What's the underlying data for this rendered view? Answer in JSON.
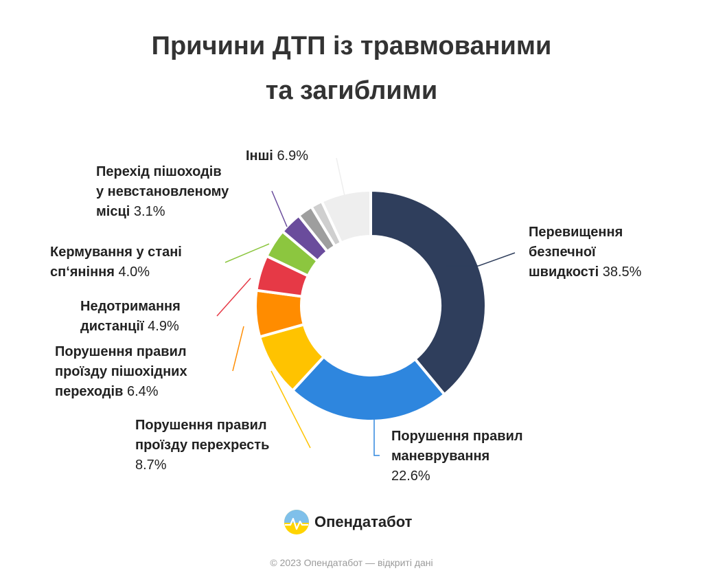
{
  "title_line1": "Причини ДТП із травмованими",
  "title_line2": "та загиблими",
  "chart_data": {
    "type": "pie",
    "donut": true,
    "title": "Причини ДТП із травмованими та загиблими",
    "unit": "%",
    "slices": [
      {
        "label": "Перевищення безпечної швидкості",
        "value": 38.5,
        "value_text": "38.5%",
        "color": "#2f3e5c"
      },
      {
        "label": "Порушення правил маневрування",
        "value": 22.6,
        "value_text": "22.6%",
        "color": "#2e86de"
      },
      {
        "label": "Порушення правил проїзду перехресть",
        "value": 8.7,
        "value_text": "8.7%",
        "color": "#ffc300"
      },
      {
        "label": "Порушення правил проїзду пішохідних переходів",
        "value": 6.4,
        "value_text": "6.4%",
        "color": "#ff8c00"
      },
      {
        "label": "Недотримання дистанції",
        "value": 4.9,
        "value_text": "4.9%",
        "color": "#e63946"
      },
      {
        "label": "Кермування у стані сп‘яніння",
        "value": 4.0,
        "value_text": "4.0%",
        "color": "#8cc63f"
      },
      {
        "label": "Перехід пішоходів у невстановленому місці",
        "value": 3.1,
        "value_text": "3.1%",
        "color": "#6a4c9c"
      },
      {
        "label": "",
        "value": 2.1,
        "value_text": "",
        "color": "#9e9e9e"
      },
      {
        "label": "",
        "value": 1.6,
        "value_text": "",
        "color": "#cfcfcf"
      },
      {
        "label": "Інші",
        "value": 6.9,
        "value_text": "6.9%",
        "color": "#eeeeee"
      }
    ]
  },
  "labels": {
    "speed_l1": "Перевищення",
    "speed_l2": "безпечної",
    "speed_l3": "швидкості",
    "speed_v": "38.5%",
    "manv_l1": "Порушення правил",
    "manv_l2": "маневрування",
    "manv_v": "22.6%",
    "inter_l1": "Порушення правил",
    "inter_l2": "проїзду перехресть",
    "inter_v": "8.7%",
    "ped_l1": "Порушення правил",
    "ped_l2": "проїзду пішохідних",
    "ped_l3": "переходів",
    "ped_v": "6.4%",
    "dist_l1": "Недотримання",
    "dist_l2": "дистанції",
    "dist_v": "4.9%",
    "drunk_l1": "Кермування у стані",
    "drunk_l2": "сп‘яніння",
    "drunk_v": "4.0%",
    "cross_l1": "Перехід пішоходів",
    "cross_l2": "у невстановленому",
    "cross_l3": "місці",
    "cross_v": "3.1%",
    "other_l1": "Інші",
    "other_v": "6.9%"
  },
  "brand": "Опендатабот",
  "footer": "© 2023 Опендатабот — відкриті дані"
}
